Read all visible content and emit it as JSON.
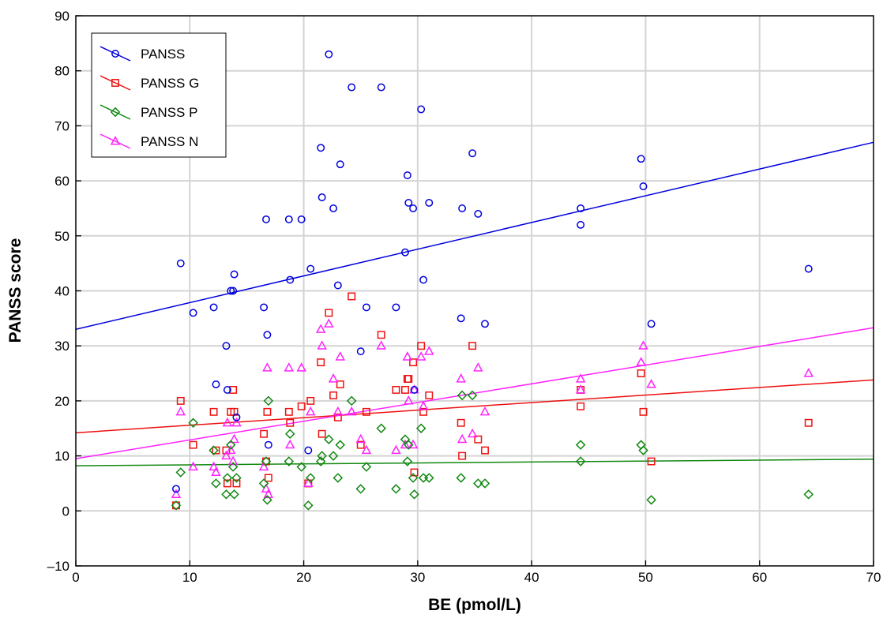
{
  "chart_data": {
    "type": "scatter",
    "xlabel": "BE (pmol/L)",
    "ylabel": "PANSS score",
    "xlim": [
      0,
      70
    ],
    "ylim": [
      -10,
      90
    ],
    "xticks": [
      0,
      10,
      20,
      30,
      40,
      50,
      60,
      70
    ],
    "yticks": [
      -10,
      0,
      10,
      20,
      30,
      40,
      50,
      60,
      70,
      80,
      90
    ],
    "ytick_labels": [
      "–10",
      "0",
      "10",
      "20",
      "30",
      "40",
      "50",
      "60",
      "70",
      "80",
      "90"
    ],
    "grid": true,
    "legend_position": "top-left",
    "series": [
      {
        "name": "PANSS",
        "color": "#0000dd",
        "marker": "circle",
        "fit": [
          [
            0,
            33
          ],
          [
            70,
            67
          ]
        ],
        "points": [
          [
            8.8,
            4
          ],
          [
            9.2,
            45
          ],
          [
            10.3,
            36
          ],
          [
            12.1,
            37
          ],
          [
            12.3,
            23
          ],
          [
            13.2,
            30
          ],
          [
            13.3,
            22
          ],
          [
            13.6,
            40
          ],
          [
            13.8,
            40
          ],
          [
            13.9,
            43
          ],
          [
            14.1,
            17
          ],
          [
            16.5,
            37
          ],
          [
            16.8,
            32
          ],
          [
            16.9,
            12
          ],
          [
            16.7,
            53
          ],
          [
            18.7,
            53
          ],
          [
            18.8,
            42
          ],
          [
            19.8,
            53
          ],
          [
            20.4,
            11
          ],
          [
            20.6,
            44
          ],
          [
            21.5,
            66
          ],
          [
            21.6,
            57
          ],
          [
            22.2,
            83
          ],
          [
            22.6,
            55
          ],
          [
            23.0,
            41
          ],
          [
            23.2,
            63
          ],
          [
            24.2,
            77
          ],
          [
            25.0,
            29
          ],
          [
            25.5,
            37
          ],
          [
            26.8,
            77
          ],
          [
            28.1,
            37
          ],
          [
            28.9,
            47
          ],
          [
            29.1,
            61
          ],
          [
            29.2,
            56
          ],
          [
            29.6,
            55
          ],
          [
            29.7,
            22
          ],
          [
            30.3,
            73
          ],
          [
            30.5,
            42
          ],
          [
            31.0,
            56
          ],
          [
            33.8,
            35
          ],
          [
            33.9,
            55
          ],
          [
            34.8,
            65
          ],
          [
            35.3,
            54
          ],
          [
            35.9,
            34
          ],
          [
            44.3,
            55
          ],
          [
            44.3,
            52
          ],
          [
            49.6,
            64
          ],
          [
            49.8,
            59
          ],
          [
            50.5,
            34
          ],
          [
            64.3,
            44
          ]
        ]
      },
      {
        "name": "PANSS G",
        "color": "#ee1111",
        "marker": "square",
        "fit": [
          [
            0,
            14.2
          ],
          [
            70,
            23.8
          ]
        ],
        "points": [
          [
            8.8,
            1
          ],
          [
            9.2,
            20
          ],
          [
            10.3,
            12
          ],
          [
            12.1,
            18
          ],
          [
            12.3,
            11
          ],
          [
            13.2,
            11
          ],
          [
            13.3,
            5
          ],
          [
            13.6,
            18
          ],
          [
            13.8,
            22
          ],
          [
            13.9,
            18
          ],
          [
            14.1,
            5
          ],
          [
            16.5,
            14
          ],
          [
            16.8,
            18
          ],
          [
            16.9,
            6
          ],
          [
            16.7,
            9
          ],
          [
            18.7,
            18
          ],
          [
            18.8,
            16
          ],
          [
            19.8,
            19
          ],
          [
            20.4,
            5
          ],
          [
            20.6,
            20
          ],
          [
            21.5,
            27
          ],
          [
            21.6,
            14
          ],
          [
            22.2,
            36
          ],
          [
            22.6,
            21
          ],
          [
            23.0,
            17
          ],
          [
            23.2,
            23
          ],
          [
            24.2,
            39
          ],
          [
            25.0,
            12
          ],
          [
            25.5,
            18
          ],
          [
            26.8,
            32
          ],
          [
            28.1,
            22
          ],
          [
            28.9,
            22
          ],
          [
            29.1,
            24
          ],
          [
            29.2,
            24
          ],
          [
            29.6,
            27
          ],
          [
            29.7,
            7
          ],
          [
            30.3,
            30
          ],
          [
            30.5,
            18
          ],
          [
            31.0,
            21
          ],
          [
            33.8,
            16
          ],
          [
            33.9,
            10
          ],
          [
            34.8,
            30
          ],
          [
            35.3,
            13
          ],
          [
            35.9,
            11
          ],
          [
            44.3,
            22
          ],
          [
            44.3,
            19
          ],
          [
            49.6,
            25
          ],
          [
            49.8,
            18
          ],
          [
            50.5,
            9
          ],
          [
            64.3,
            16
          ]
        ]
      },
      {
        "name": "PANSS P",
        "color": "#118811",
        "marker": "diamond",
        "fit": [
          [
            0,
            8.2
          ],
          [
            70,
            9.4
          ]
        ],
        "points": [
          [
            8.8,
            1
          ],
          [
            9.2,
            7
          ],
          [
            10.3,
            16
          ],
          [
            12.1,
            11
          ],
          [
            12.3,
            5
          ],
          [
            13.2,
            3
          ],
          [
            13.3,
            6
          ],
          [
            13.6,
            12
          ],
          [
            13.8,
            8
          ],
          [
            13.9,
            3
          ],
          [
            14.1,
            6
          ],
          [
            16.5,
            5
          ],
          [
            16.8,
            2
          ],
          [
            16.9,
            20
          ],
          [
            16.7,
            9
          ],
          [
            18.7,
            9
          ],
          [
            18.8,
            14
          ],
          [
            19.8,
            8
          ],
          [
            20.4,
            1
          ],
          [
            20.6,
            6
          ],
          [
            21.5,
            9
          ],
          [
            21.6,
            10
          ],
          [
            22.2,
            13
          ],
          [
            22.6,
            10
          ],
          [
            23.0,
            6
          ],
          [
            23.2,
            12
          ],
          [
            24.2,
            20
          ],
          [
            25.0,
            4
          ],
          [
            25.5,
            8
          ],
          [
            26.8,
            15
          ],
          [
            28.1,
            4
          ],
          [
            28.9,
            13
          ],
          [
            29.1,
            9
          ],
          [
            29.2,
            12
          ],
          [
            29.6,
            6
          ],
          [
            29.7,
            3
          ],
          [
            30.3,
            15
          ],
          [
            30.5,
            6
          ],
          [
            31.0,
            6
          ],
          [
            33.8,
            6
          ],
          [
            33.9,
            21
          ],
          [
            34.8,
            21
          ],
          [
            35.3,
            5
          ],
          [
            35.9,
            5
          ],
          [
            44.3,
            12
          ],
          [
            44.3,
            9
          ],
          [
            49.6,
            12
          ],
          [
            49.8,
            11
          ],
          [
            50.5,
            2
          ],
          [
            64.3,
            3
          ]
        ]
      },
      {
        "name": "PANSS N",
        "color": "#ff22ff",
        "marker": "triangle",
        "fit": [
          [
            0,
            9.5
          ],
          [
            70,
            33.3
          ]
        ],
        "points": [
          [
            8.8,
            3
          ],
          [
            9.2,
            18
          ],
          [
            10.3,
            8
          ],
          [
            12.1,
            8
          ],
          [
            12.3,
            7
          ],
          [
            13.2,
            10
          ],
          [
            13.3,
            16
          ],
          [
            13.6,
            11
          ],
          [
            13.8,
            9
          ],
          [
            13.9,
            13
          ],
          [
            14.1,
            16
          ],
          [
            16.5,
            8
          ],
          [
            16.8,
            26
          ],
          [
            16.9,
            3
          ],
          [
            16.7,
            4
          ],
          [
            18.7,
            26
          ],
          [
            18.8,
            12
          ],
          [
            19.8,
            26
          ],
          [
            20.4,
            5
          ],
          [
            20.6,
            18
          ],
          [
            21.5,
            33
          ],
          [
            21.6,
            30
          ],
          [
            22.2,
            34
          ],
          [
            22.6,
            24
          ],
          [
            23.0,
            18
          ],
          [
            23.2,
            28
          ],
          [
            24.2,
            18
          ],
          [
            25.0,
            13
          ],
          [
            25.5,
            11
          ],
          [
            26.8,
            30
          ],
          [
            28.1,
            11
          ],
          [
            28.9,
            12
          ],
          [
            29.1,
            28
          ],
          [
            29.2,
            20
          ],
          [
            29.6,
            12
          ],
          [
            29.7,
            22
          ],
          [
            30.3,
            28
          ],
          [
            30.5,
            19
          ],
          [
            31.0,
            29
          ],
          [
            33.8,
            24
          ],
          [
            33.9,
            13
          ],
          [
            34.8,
            14
          ],
          [
            35.3,
            26
          ],
          [
            35.9,
            18
          ],
          [
            44.3,
            24
          ],
          [
            44.3,
            22
          ],
          [
            49.6,
            27
          ],
          [
            49.8,
            30
          ],
          [
            50.5,
            23
          ],
          [
            64.3,
            25
          ]
        ]
      }
    ]
  }
}
